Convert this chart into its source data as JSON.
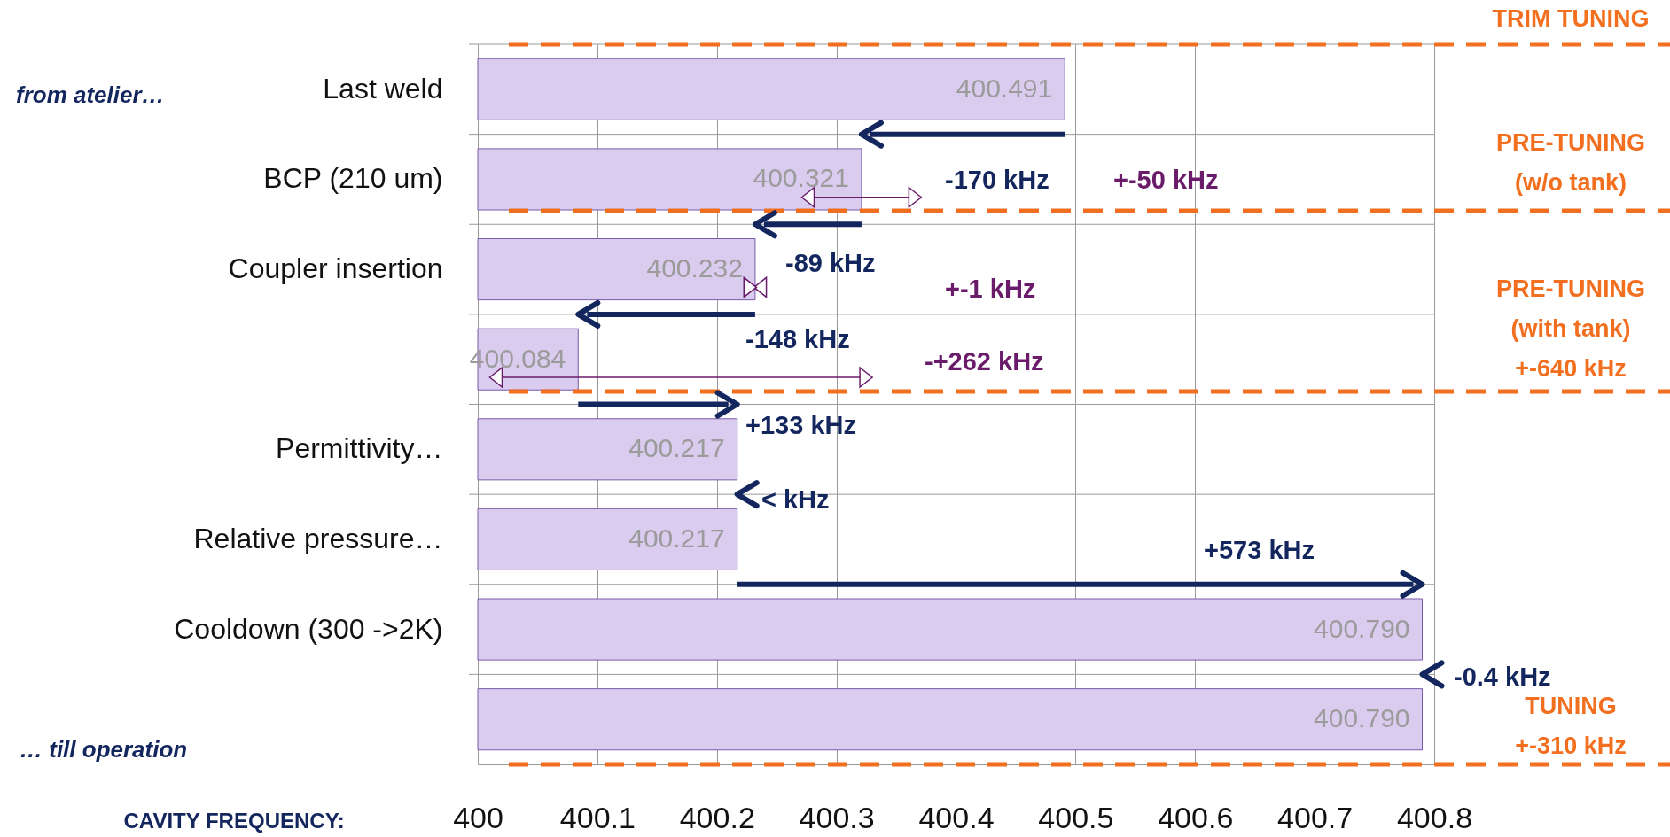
{
  "chart_data": {
    "type": "bar",
    "orientation": "horizontal",
    "xlabel": "CAVITY FREQUENCY:",
    "categories": [
      "Last weld",
      "BCP (210 um)",
      "Coupler insertion",
      null,
      "Permittivity…",
      "Relative pressure…",
      "Cooldown (300 ->2K)",
      null
    ],
    "values": [
      400.491,
      400.321,
      400.232,
      400.084,
      400.217,
      400.217,
      400.79,
      400.79
    ],
    "value_labels": [
      "400.491",
      "400.321",
      "400.232",
      "400.084",
      "400.217",
      "400.217",
      "400.790",
      "400.790"
    ],
    "errors": [
      null,
      0.05,
      0.001,
      [
        400.01,
        400.33
      ],
      null,
      null,
      null,
      null
    ],
    "color": "#d9ccef",
    "xlim": [
      400,
      400.8
    ],
    "xticks": [
      400,
      400.1,
      400.2,
      400.3,
      400.4,
      400.5,
      400.6,
      400.7,
      400.8
    ],
    "grid": true,
    "annotations": [
      "from atelier…",
      "… till operation",
      "-170 kHz",
      "+-50 kHz",
      "-89 kHz",
      "+-1 kHz",
      "-148 kHz",
      "-+262 kHz",
      "+133 kHz",
      "< kHz",
      "+573 kHz",
      "-0.4 kHz",
      "TRIM TUNING",
      "PRE-TUNING\n(w/o tank)",
      "PRE-TUNING\n(with tank)\n+-640 kHz",
      "TUNING\n+-310 kHz"
    ]
  }
}
